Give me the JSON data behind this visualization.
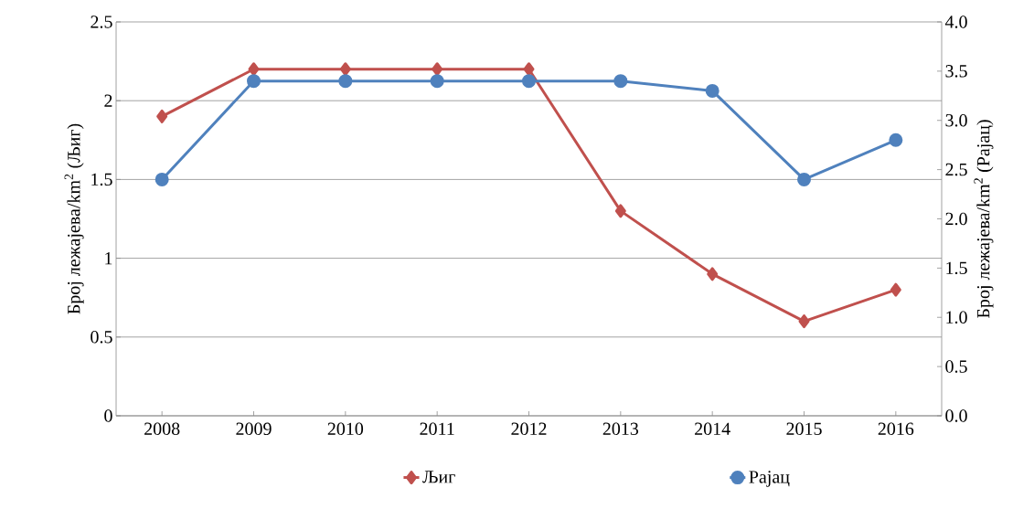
{
  "chart_data": {
    "type": "line",
    "categories": [
      "2008",
      "2009",
      "2010",
      "2011",
      "2012",
      "2013",
      "2014",
      "2015",
      "2016"
    ],
    "series": [
      {
        "name": "Љиг",
        "color": "#c0504d",
        "marker": "diamond",
        "values": [
          1.9,
          2.2,
          2.2,
          2.2,
          2.2,
          1.3,
          0.9,
          0.6,
          0.8
        ]
      },
      {
        "name": "Рајац",
        "color": "#4f81bd",
        "marker": "circle",
        "axis": "y2",
        "values": [
          2.4,
          3.4,
          3.4,
          3.4,
          3.4,
          3.4,
          3.3,
          2.4,
          2.8
        ]
      }
    ],
    "ylabel": "Број лежајева/km$^{2}$ (Љиг)",
    "y2label": "Број лежајева/km$^{2}$ (Рајац)",
    "ylim": [
      0,
      2.5
    ],
    "yticks": [
      0,
      0.5,
      1,
      1.5,
      2,
      2.5
    ],
    "y2lim": [
      0,
      4
    ],
    "y2ticks": [
      {
        "value": 0,
        "label": "0.0"
      },
      {
        "value": 0.5,
        "label": "0.5"
      },
      {
        "value": 1,
        "label": "1.0"
      },
      {
        "value": 1.5,
        "label": "1.5"
      },
      {
        "value": 2,
        "label": "2.0"
      },
      {
        "value": 2.5,
        "label": "2.5"
      },
      {
        "value": 3,
        "label": "3.0"
      },
      {
        "value": 3.5,
        "label": "3.5"
      },
      {
        "value": 4,
        "label": "4.0"
      }
    ],
    "grid": "y",
    "legend": "bottom",
    "line_style": "solid"
  }
}
